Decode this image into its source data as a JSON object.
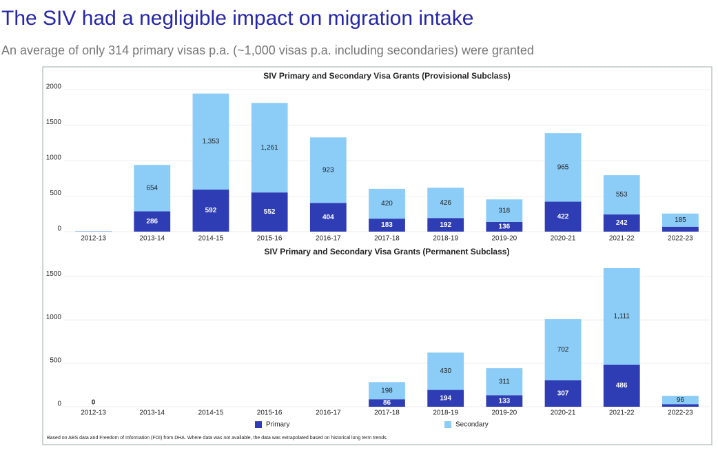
{
  "title": "The SIV had a negligible impact on migration intake",
  "subtitle": "An average of only 314 primary visas p.a. (~1,000 visas p.a. including secondaries) were granted",
  "note": "Based on ABS data and Freedom of Information (FOI) from DHA. Where data was not available, the data was extrapolated based on historical long term trends.",
  "chart_data": [
    {
      "type": "stacked-bar",
      "title": "SIV Primary and Secondary Visa Grants (Provisional Subclass)",
      "categories": [
        "2012-13",
        "2013-14",
        "2014-15",
        "2015-16",
        "2016-17",
        "2017-18",
        "2018-19",
        "2019-20",
        "2020-21",
        "2021-22",
        "2022-23"
      ],
      "series": [
        {
          "name": "Primary",
          "color": "#2f3db5",
          "values": [
            3,
            286,
            592,
            552,
            404,
            183,
            192,
            136,
            422,
            242,
            70
          ],
          "value_labels": [
            null,
            "286",
            "592",
            "552",
            "404",
            "183",
            "192",
            "136",
            "422",
            "242",
            null
          ]
        },
        {
          "name": "Secondary",
          "color": "#8ccdf8",
          "values": [
            5,
            654,
            1353,
            1261,
            923,
            420,
            426,
            318,
            965,
            553,
            185
          ],
          "value_labels": [
            null,
            "654",
            "1,353",
            "1,261",
            "923",
            "420",
            "426",
            "318",
            "965",
            "553",
            "185"
          ]
        }
      ],
      "ylim": [
        0,
        2000
      ],
      "yticks": [
        0,
        500,
        1000,
        1500,
        2000
      ],
      "grid": true
    },
    {
      "type": "stacked-bar",
      "title": "SIV Primary and Secondary Visa Grants (Permanent Subclass)",
      "categories": [
        "2012-13",
        "2013-14",
        "2014-15",
        "2015-16",
        "2016-17",
        "2017-18",
        "2018-19",
        "2019-20",
        "2020-21",
        "2021-22",
        "2022-23"
      ],
      "series": [
        {
          "name": "Primary",
          "color": "#2f3db5",
          "values": [
            0,
            0,
            0,
            0,
            0,
            86,
            194,
            133,
            307,
            486,
            30
          ],
          "value_labels": [
            "0",
            null,
            null,
            null,
            null,
            "86",
            "194",
            "133",
            "307",
            "486",
            null
          ]
        },
        {
          "name": "Secondary",
          "color": "#8ccdf8",
          "values": [
            0,
            0,
            0,
            0,
            0,
            198,
            430,
            311,
            702,
            1111,
            96
          ],
          "value_labels": [
            null,
            null,
            null,
            null,
            null,
            "198",
            "430",
            "311",
            "702",
            "1,111",
            "96"
          ]
        }
      ],
      "ylim": [
        0,
        1700
      ],
      "yticks": [
        0,
        500,
        1000,
        1500
      ],
      "grid": true,
      "legend": "bottom"
    }
  ]
}
